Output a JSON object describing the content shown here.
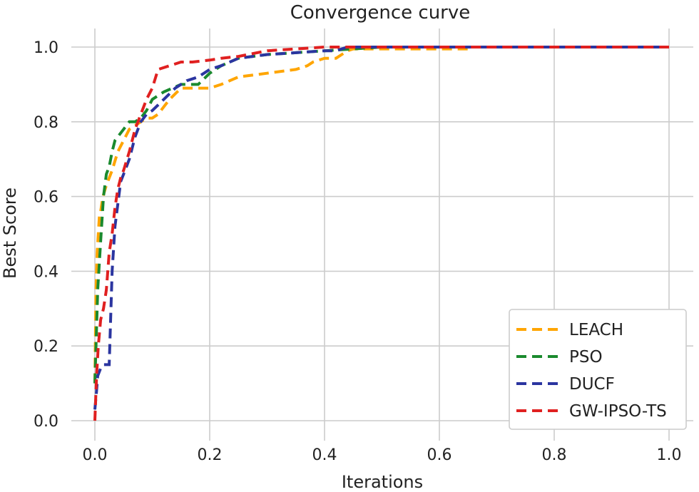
{
  "chart_data": {
    "type": "line",
    "title": "Convergence curve",
    "xlabel": "Iterations",
    "ylabel": "Best Score",
    "xlim": [
      0,
      1
    ],
    "ylim": [
      0,
      1
    ],
    "xticks": [
      0.0,
      0.2,
      0.4,
      0.6,
      0.8,
      1.0
    ],
    "yticks": [
      0.0,
      0.2,
      0.4,
      0.6,
      0.8,
      1.0
    ],
    "xtick_labels": [
      "0.0",
      "0.2",
      "0.4",
      "0.6",
      "0.8",
      "1.0"
    ],
    "ytick_labels": [
      "0.0",
      "0.2",
      "0.4",
      "0.6",
      "0.8",
      "1.0"
    ],
    "grid": true,
    "legend_position": "lower-right",
    "series": [
      {
        "name": "LEACH",
        "color": "#ffa500",
        "style": "dashed",
        "x": [
          0,
          0.002,
          0.004,
          0.006,
          0.008,
          0.01,
          0.014,
          0.02,
          0.025,
          0.03,
          0.04,
          0.05,
          0.06,
          0.07,
          0.08,
          0.09,
          0.1,
          0.11,
          0.12,
          0.13,
          0.15,
          0.2,
          0.22,
          0.25,
          0.3,
          0.35,
          0.37,
          0.38,
          0.4,
          0.42,
          0.43,
          0.44,
          0.45,
          0.5,
          0.55,
          0.6,
          0.65
        ],
        "values": [
          0.1,
          0.35,
          0.45,
          0.5,
          0.55,
          0.56,
          0.6,
          0.63,
          0.65,
          0.67,
          0.72,
          0.75,
          0.78,
          0.79,
          0.8,
          0.81,
          0.81,
          0.82,
          0.84,
          0.86,
          0.89,
          0.89,
          0.9,
          0.92,
          0.93,
          0.94,
          0.95,
          0.96,
          0.97,
          0.97,
          0.98,
          0.99,
          0.995,
          0.995,
          0.995,
          0.995,
          0.995
        ]
      },
      {
        "name": "PSO",
        "color": "#1a8a2e",
        "style": "dashed",
        "x": [
          0,
          0.005,
          0.01,
          0.015,
          0.02,
          0.025,
          0.03,
          0.035,
          0.04,
          0.05,
          0.06,
          0.07,
          0.08,
          0.09,
          0.1,
          0.12,
          0.15,
          0.18,
          0.2,
          0.22,
          0.25,
          0.3,
          0.35,
          0.4,
          0.45,
          0.5,
          0.6,
          0.7,
          0.8,
          0.9,
          1.0
        ],
        "values": [
          0.1,
          0.35,
          0.48,
          0.6,
          0.66,
          0.68,
          0.72,
          0.75,
          0.76,
          0.78,
          0.8,
          0.8,
          0.81,
          0.83,
          0.86,
          0.88,
          0.9,
          0.9,
          0.93,
          0.95,
          0.97,
          0.98,
          0.985,
          0.99,
          0.995,
          1.0,
          1.0,
          1.0,
          1.0,
          1.0,
          1.0
        ]
      },
      {
        "name": "DUCF",
        "color": "#2b35a0",
        "style": "dashed",
        "x": [
          0,
          0.003,
          0.005,
          0.01,
          0.015,
          0.02,
          0.025,
          0.03,
          0.035,
          0.04,
          0.045,
          0.05,
          0.06,
          0.07,
          0.08,
          0.09,
          0.1,
          0.12,
          0.14,
          0.16,
          0.18,
          0.2,
          0.22,
          0.25,
          0.3,
          0.35,
          0.4,
          0.42,
          0.44,
          0.5,
          0.6,
          0.7,
          0.8,
          0.9,
          1.0
        ],
        "values": [
          0.03,
          0.08,
          0.12,
          0.14,
          0.15,
          0.15,
          0.15,
          0.4,
          0.52,
          0.58,
          0.64,
          0.66,
          0.7,
          0.76,
          0.8,
          0.82,
          0.83,
          0.86,
          0.89,
          0.91,
          0.92,
          0.94,
          0.95,
          0.97,
          0.98,
          0.985,
          0.99,
          0.99,
          1.0,
          1.0,
          1.0,
          1.0,
          1.0,
          1.0,
          1.0
        ]
      },
      {
        "name": "GW-IPSO-TS",
        "color": "#e02020",
        "style": "dashed",
        "x": [
          0,
          0.003,
          0.006,
          0.01,
          0.015,
          0.02,
          0.025,
          0.03,
          0.035,
          0.04,
          0.045,
          0.05,
          0.06,
          0.07,
          0.08,
          0.09,
          0.1,
          0.11,
          0.13,
          0.15,
          0.17,
          0.2,
          0.22,
          0.25,
          0.3,
          0.35,
          0.4,
          0.45,
          0.5,
          0.6,
          0.7,
          0.8,
          0.9,
          1.0
        ],
        "values": [
          0.0,
          0.12,
          0.2,
          0.27,
          0.3,
          0.35,
          0.45,
          0.5,
          0.57,
          0.62,
          0.65,
          0.67,
          0.72,
          0.78,
          0.82,
          0.86,
          0.89,
          0.94,
          0.95,
          0.96,
          0.96,
          0.965,
          0.97,
          0.975,
          0.99,
          0.995,
          1.0,
          1.0,
          1.0,
          1.0,
          1.0,
          1.0,
          1.0,
          1.0
        ]
      }
    ]
  }
}
